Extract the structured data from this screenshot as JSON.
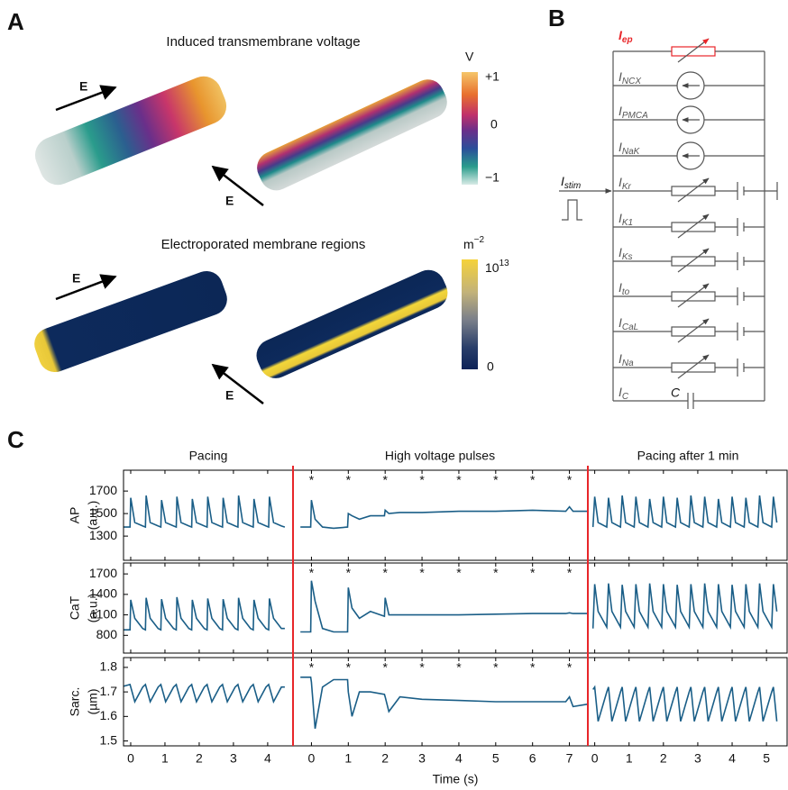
{
  "panel_a": {
    "label": "A",
    "voltage": {
      "title": "Induced transmembrane voltage",
      "colorbar_unit": "V",
      "colorbar_ticks": [
        "+1",
        "0",
        "−1"
      ]
    },
    "electroporation": {
      "title": "Electroporated membrane regions",
      "colorbar_unit": {
        "base": "m",
        "exp": "−2"
      },
      "colorbar_ticks": [
        {
          "base": "10",
          "exp": "13"
        },
        "0"
      ]
    },
    "field_label": "E"
  },
  "panel_b": {
    "label": "B",
    "branches": [
      {
        "symbol": "I",
        "sub": "ep"
      },
      {
        "symbol": "I",
        "sub": "NCX"
      },
      {
        "symbol": "I",
        "sub": "PMCA"
      },
      {
        "symbol": "I",
        "sub": "NaK"
      },
      {
        "symbol": "I",
        "sub": "Kr"
      },
      {
        "symbol": "I",
        "sub": "K1"
      },
      {
        "symbol": "I",
        "sub": "Ks"
      },
      {
        "symbol": "I",
        "sub": "to"
      },
      {
        "symbol": "I",
        "sub": "CaL"
      },
      {
        "symbol": "I",
        "sub": "Na"
      },
      {
        "symbol": "I",
        "sub": "C"
      }
    ],
    "stim": {
      "symbol": "I",
      "sub": "stim"
    },
    "capacitor": "C"
  },
  "panel_c": {
    "label": "C",
    "headers": [
      "Pacing",
      "High voltage pulses",
      "Pacing after 1 min"
    ],
    "xlabel": "Time (s)",
    "pulse_marker": "*",
    "pulse_times": [
      0,
      1,
      2,
      3,
      4,
      5,
      6,
      7
    ],
    "segments": [
      {
        "xlim": [
          -0.21,
          4.74
        ],
        "xticks": [
          0,
          1,
          2,
          3,
          4
        ],
        "x": [
          -0.3,
          -0.02,
          0,
          0.12,
          0.35,
          0.43,
          0.45,
          0.57,
          0.8,
          0.88,
          0.9,
          1.02,
          1.25,
          1.33,
          1.35,
          1.47,
          1.7,
          1.78,
          1.8,
          1.92,
          2.15,
          2.23,
          2.25,
          2.37,
          2.6,
          2.68,
          2.7,
          2.82,
          3.05,
          3.13,
          3.15,
          3.27,
          3.5,
          3.58,
          3.6,
          3.72,
          3.95,
          4.03,
          4.05,
          4.17,
          4.4,
          4.5
        ]
      },
      {
        "xlim": [
          -0.5,
          7.5
        ],
        "xticks": [
          0,
          1,
          2,
          3,
          4,
          5,
          6,
          7
        ],
        "x": [
          -0.3,
          -0.02,
          0,
          0.1,
          0.3,
          0.6,
          0.98,
          1,
          1.1,
          1.3,
          1.6,
          1.98,
          2,
          2.1,
          2.4,
          3,
          4,
          5,
          6,
          6.9,
          7,
          7.1,
          7.5
        ]
      },
      {
        "xlim": [
          -0.2,
          5.6
        ],
        "xticks": [
          0,
          1,
          2,
          3,
          4,
          5
        ],
        "x": [
          -0.05,
          0,
          0.1,
          0.35,
          0.4,
          0.5,
          0.75,
          0.8,
          0.9,
          1.15,
          1.2,
          1.3,
          1.55,
          1.6,
          1.7,
          1.95,
          2,
          2.1,
          2.35,
          2.4,
          2.5,
          2.75,
          2.8,
          2.9,
          3.15,
          3.2,
          3.3,
          3.55,
          3.6,
          3.7,
          3.95,
          4,
          4.1,
          4.35,
          4.4,
          4.5,
          4.75,
          4.8,
          4.9,
          5.15,
          5.2,
          5.3
        ]
      }
    ]
  },
  "chart_data": [
    {
      "type": "line",
      "ylabel": "AP",
      "yunit": "(a.u.)",
      "ylim": [
        1085,
        1885
      ],
      "yticks": [
        1300,
        1500,
        1700
      ],
      "color": "#1a5e87",
      "series": [
        {
          "values": [
            1380,
            1380,
            1640,
            1420,
            1390,
            1380,
            1660,
            1420,
            1390,
            1380,
            1620,
            1420,
            1390,
            1380,
            1650,
            1420,
            1390,
            1380,
            1630,
            1420,
            1390,
            1380,
            1650,
            1420,
            1390,
            1380,
            1640,
            1420,
            1390,
            1380,
            1660,
            1420,
            1390,
            1380,
            1630,
            1420,
            1390,
            1380,
            1650,
            1420,
            1390,
            1380
          ]
        },
        {
          "values": [
            1380,
            1380,
            1620,
            1450,
            1380,
            1370,
            1380,
            1500,
            1480,
            1450,
            1480,
            1480,
            1530,
            1500,
            1510,
            1510,
            1520,
            1520,
            1530,
            1520,
            1560,
            1520,
            1520
          ]
        },
        {
          "values": [
            1380,
            1650,
            1420,
            1380,
            1640,
            1420,
            1380,
            1660,
            1420,
            1380,
            1650,
            1420,
            1380,
            1630,
            1420,
            1380,
            1650,
            1420,
            1380,
            1640,
            1420,
            1380,
            1660,
            1420,
            1380,
            1650,
            1420,
            1380,
            1630,
            1420,
            1380,
            1650,
            1420,
            1380,
            1640,
            1420,
            1380,
            1660,
            1420,
            1380,
            1650,
            1420
          ]
        }
      ]
    },
    {
      "type": "line",
      "ylabel": "CaT",
      "yunit": "(a.u.)",
      "ylim": [
        540,
        1860
      ],
      "yticks": [
        800,
        1100,
        1400,
        1700
      ],
      "color": "#1a5e87",
      "series": [
        {
          "values": [
            880,
            880,
            1320,
            1050,
            900,
            880,
            1350,
            1050,
            900,
            880,
            1330,
            1050,
            900,
            880,
            1360,
            1050,
            900,
            880,
            1320,
            1050,
            900,
            880,
            1340,
            1050,
            900,
            880,
            1330,
            1050,
            900,
            880,
            1350,
            1050,
            900,
            880,
            1320,
            1050,
            900,
            880,
            1340,
            1050,
            900,
            900
          ]
        },
        {
          "values": [
            850,
            850,
            1600,
            1300,
            900,
            850,
            850,
            1500,
            1200,
            1050,
            1150,
            1080,
            1350,
            1100,
            1100,
            1100,
            1100,
            1110,
            1120,
            1120,
            1130,
            1120,
            1120
          ]
        },
        {
          "values": [
            900,
            1550,
            1150,
            920,
            1560,
            1150,
            920,
            1540,
            1150,
            920,
            1550,
            1150,
            920,
            1560,
            1150,
            920,
            1550,
            1150,
            920,
            1540,
            1150,
            920,
            1550,
            1150,
            920,
            1560,
            1150,
            920,
            1550,
            1150,
            920,
            1540,
            1150,
            920,
            1550,
            1150,
            920,
            1560,
            1150,
            920,
            1550,
            1150
          ]
        }
      ]
    },
    {
      "type": "line",
      "ylabel": "Sarc.",
      "yunit": "(µm)",
      "ylim": [
        1.48,
        1.84
      ],
      "yticks": [
        1.5,
        1.6,
        1.7,
        1.8
      ],
      "color": "#1a5e87",
      "series": [
        {
          "values": [
            1.72,
            1.73,
            1.72,
            1.66,
            1.72,
            1.73,
            1.72,
            1.66,
            1.72,
            1.73,
            1.72,
            1.66,
            1.72,
            1.73,
            1.72,
            1.66,
            1.72,
            1.73,
            1.72,
            1.66,
            1.72,
            1.73,
            1.72,
            1.66,
            1.72,
            1.73,
            1.72,
            1.66,
            1.72,
            1.73,
            1.72,
            1.66,
            1.72,
            1.73,
            1.72,
            1.66,
            1.72,
            1.73,
            1.72,
            1.66,
            1.72,
            1.72
          ]
        },
        {
          "values": [
            1.76,
            1.76,
            1.74,
            1.55,
            1.72,
            1.75,
            1.75,
            1.7,
            1.6,
            1.7,
            1.7,
            1.69,
            1.68,
            1.62,
            1.68,
            1.67,
            1.665,
            1.66,
            1.66,
            1.66,
            1.68,
            1.64,
            1.65
          ]
        },
        {
          "values": [
            1.71,
            1.72,
            1.58,
            1.7,
            1.72,
            1.58,
            1.7,
            1.72,
            1.58,
            1.7,
            1.72,
            1.58,
            1.7,
            1.72,
            1.58,
            1.7,
            1.72,
            1.58,
            1.7,
            1.72,
            1.58,
            1.7,
            1.72,
            1.58,
            1.7,
            1.72,
            1.58,
            1.7,
            1.72,
            1.58,
            1.7,
            1.72,
            1.58,
            1.7,
            1.72,
            1.58,
            1.7,
            1.72,
            1.58,
            1.7,
            1.72,
            1.58
          ]
        }
      ]
    }
  ]
}
